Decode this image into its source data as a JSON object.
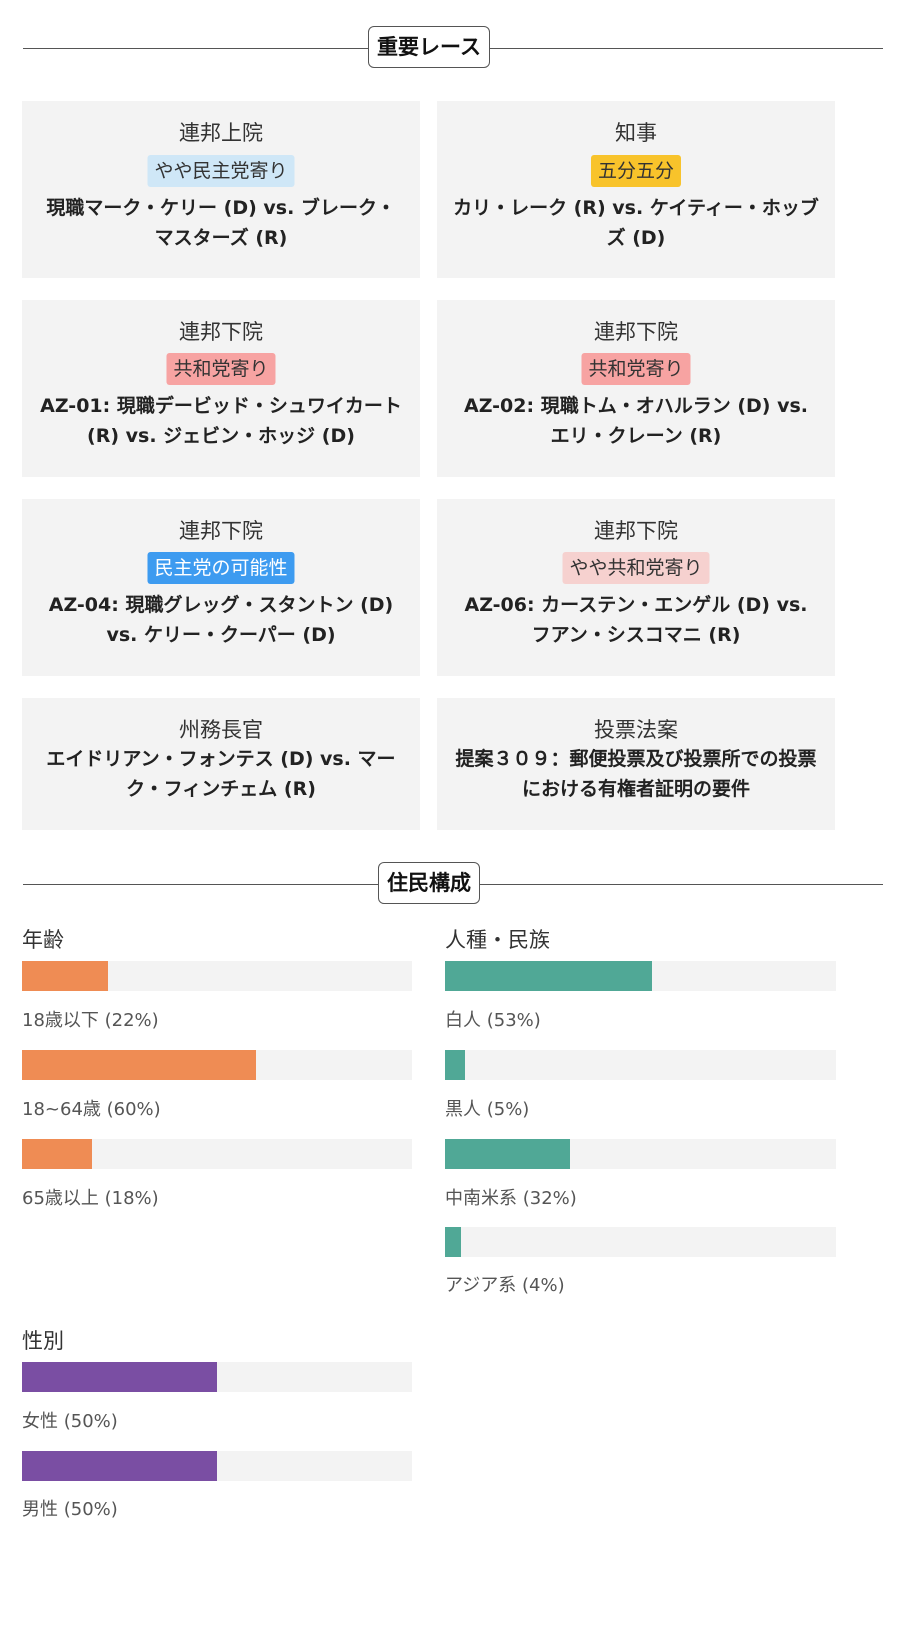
{
  "races_header": "重要レース",
  "races": [
    {
      "category": "連邦上院",
      "rating": "やや民主党寄り",
      "rating_class": "b-lean-dem",
      "description": "現職マーク・ケリー (D) vs. ブレーク・マスターズ (R)"
    },
    {
      "category": "知事",
      "rating": "五分五分",
      "rating_class": "b-tossup",
      "description": "カリ・レーク (R) vs. ケイティー・ホッブズ (D)"
    },
    {
      "category": "連邦下院",
      "rating": "共和党寄り",
      "rating_class": "b-lean-rep",
      "description": "AZ-01: 現職デービッド・シュワイカート (R) vs. ジェビン・ホッジ (D)"
    },
    {
      "category": "連邦下院",
      "rating": "共和党寄り",
      "rating_class": "b-lean-rep",
      "description": "AZ-02: 現職トム・オハルラン (D) vs. エリ・クレーン (R)"
    },
    {
      "category": "連邦下院",
      "rating": "民主党の可能性",
      "rating_class": "b-likely-dem",
      "description": "AZ-04: 現職グレッグ・スタントン (D) vs. ケリー・クーパー (D)"
    },
    {
      "category": "連邦下院",
      "rating": "やや共和党寄り",
      "rating_class": "b-tilt-rep",
      "description": "AZ-06: カーステン・エンゲル (D) vs. フアン・シスコマニ (R)"
    },
    {
      "category": "州務長官",
      "rating": null,
      "description": "エイドリアン・フォンテス (D) vs. マーク・フィンチェム (R)"
    },
    {
      "category": "投票法案",
      "rating": null,
      "description": "提案３０９：郵便投票及び投票所での投票における有権者証明の要件"
    }
  ],
  "demographics_header": "住民構成",
  "demographics": {
    "age": {
      "title": "年齢",
      "color": "#ef8c54",
      "items": [
        {
          "label": "18歳以下 (22%)",
          "value": 22
        },
        {
          "label": "18~64歳 (60%)",
          "value": 60
        },
        {
          "label": "65歳以上 (18%)",
          "value": 18
        }
      ]
    },
    "race": {
      "title": "人種・民族",
      "color": "#50a896",
      "items": [
        {
          "label": "白人 (53%)",
          "value": 53
        },
        {
          "label": "黒人 (5%)",
          "value": 5
        },
        {
          "label": "中南米系 (32%)",
          "value": 32
        },
        {
          "label": "アジア系 (4%)",
          "value": 4
        }
      ]
    },
    "gender": {
      "title": "性別",
      "color": "#7a4ea3",
      "items": [
        {
          "label": "女性 (50%)",
          "value": 50
        },
        {
          "label": "男性 (50%)",
          "value": 50
        }
      ]
    }
  }
}
